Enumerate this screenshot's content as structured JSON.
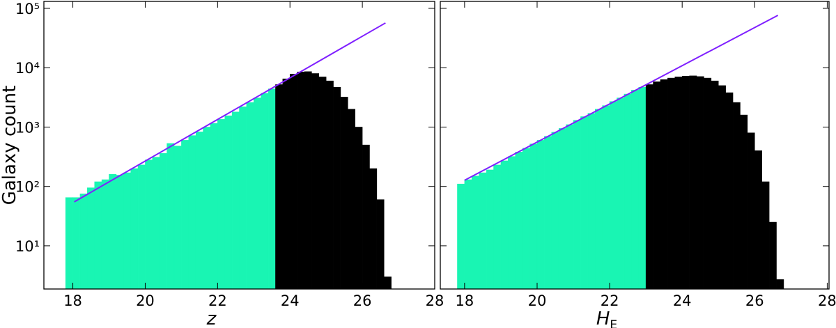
{
  "chart_data": [
    {
      "type": "histogram",
      "xlabel": "z",
      "ylabel": "Galaxy count",
      "log_y": true,
      "bins": [
        17.8,
        18,
        18.2,
        18.4,
        18.6,
        18.8,
        19,
        19.2,
        19.4,
        19.6,
        19.8,
        20,
        20.2,
        20.4,
        20.6,
        20.8,
        21,
        21.2,
        21.4,
        21.6,
        21.8,
        22,
        22.2,
        22.4,
        22.6,
        22.8,
        23,
        23.2,
        23.4,
        23.6,
        23.8,
        24,
        24.2,
        24.4,
        24.6,
        24.8,
        25,
        25.2,
        25.4,
        25.6,
        25.8,
        26,
        26.2,
        26.4,
        26.6,
        26.8
      ],
      "values": [
        65,
        65,
        75,
        95,
        120,
        130,
        160,
        155,
        170,
        200,
        230,
        280,
        310,
        360,
        530,
        480,
        600,
        720,
        830,
        1000,
        1150,
        1350,
        1550,
        1800,
        2200,
        2600,
        3100,
        3700,
        4400,
        5200,
        6500,
        7800,
        8500,
        8600,
        8000,
        7000,
        6000,
        4700,
        3200,
        2000,
        1000,
        500,
        200,
        60,
        3
      ],
      "colors": [
        "#19f5b3",
        "#19f5b3",
        "#19f5b3",
        "#19f5b3",
        "#19f5b3",
        "#19f5b3",
        "#19f5b3",
        "#19f5b3",
        "#19f5b3",
        "#19f5b3",
        "#19f5b3",
        "#19f5b3",
        "#19f5b3",
        "#19f5b3",
        "#19f5b3",
        "#19f5b3",
        "#19f5b3",
        "#19f5b3",
        "#19f5b3",
        "#19f5b3",
        "#19f5b3",
        "#19f5b3",
        "#19f5b3",
        "#19f5b3",
        "#19f5b3",
        "#19f5b3",
        "#19f5b3",
        "#19f5b3",
        "#19f5b3",
        "#000000",
        "#000000",
        "#000000",
        "#000000",
        "#000000",
        "#000000",
        "#000000",
        "#000000",
        "#000000",
        "#000000",
        "#000000",
        "#000000",
        "#000000",
        "#000000",
        "#000000",
        "#000000"
      ],
      "fit": {
        "x": [
          18.04,
          26.64
        ],
        "values": [
          55,
          56800
        ],
        "color": "#7f1fff"
      },
      "xlim": [
        17.2,
        28
      ],
      "xticks": [
        18,
        20,
        22,
        24,
        26,
        28
      ],
      "ylim": [
        1.87,
        131000
      ],
      "yticks": [
        {
          "value": 10,
          "label": "10¹"
        },
        {
          "value": 100,
          "label": "10²"
        },
        {
          "value": 1000,
          "label": "10³"
        },
        {
          "value": 10000,
          "label": "10⁴"
        },
        {
          "value": 100000,
          "label": "10⁵"
        }
      ]
    },
    {
      "type": "histogram",
      "xlabel": "H",
      "xlabel_sub": "E",
      "log_y": true,
      "bins": [
        17.8,
        18,
        18.2,
        18.4,
        18.6,
        18.8,
        19,
        19.2,
        19.4,
        19.6,
        19.8,
        20,
        20.2,
        20.4,
        20.6,
        20.8,
        21,
        21.2,
        21.4,
        21.6,
        21.8,
        22,
        22.2,
        22.4,
        22.6,
        22.8,
        23,
        23.2,
        23.4,
        23.6,
        23.8,
        24,
        24.2,
        24.4,
        24.6,
        24.8,
        25,
        25.2,
        25.4,
        25.6,
        25.8,
        26,
        26.2,
        26.4,
        26.6,
        26.8
      ],
      "values": [
        110,
        130,
        150,
        170,
        190,
        230,
        270,
        320,
        380,
        440,
        520,
        600,
        700,
        820,
        950,
        1100,
        1300,
        1500,
        1700,
        2000,
        2300,
        2700,
        3100,
        3600,
        4200,
        4700,
        5200,
        5800,
        6300,
        6700,
        7000,
        7200,
        7300,
        7100,
        6700,
        6000,
        5000,
        3800,
        2600,
        1600,
        800,
        400,
        120,
        25,
        2.7
      ],
      "colors": [
        "#19f5b3",
        "#19f5b3",
        "#19f5b3",
        "#19f5b3",
        "#19f5b3",
        "#19f5b3",
        "#19f5b3",
        "#19f5b3",
        "#19f5b3",
        "#19f5b3",
        "#19f5b3",
        "#19f5b3",
        "#19f5b3",
        "#19f5b3",
        "#19f5b3",
        "#19f5b3",
        "#19f5b3",
        "#19f5b3",
        "#19f5b3",
        "#19f5b3",
        "#19f5b3",
        "#19f5b3",
        "#19f5b3",
        "#19f5b3",
        "#19f5b3",
        "#19f5b3",
        "#000000",
        "#000000",
        "#000000",
        "#000000",
        "#000000",
        "#000000",
        "#000000",
        "#000000",
        "#000000",
        "#000000",
        "#000000",
        "#000000",
        "#000000",
        "#000000",
        "#000000",
        "#000000",
        "#000000",
        "#000000",
        "#000000"
      ],
      "fit": {
        "x": [
          18.0,
          26.64
        ],
        "values": [
          127,
          76400
        ],
        "color": "#7f1fff"
      },
      "xlim": [
        17.33,
        28.05
      ],
      "xticks": [
        18,
        20,
        22,
        24,
        26,
        28
      ],
      "ylim": [
        1.87,
        131000
      ],
      "yticks": [
        10,
        100,
        1000,
        10000,
        100000
      ]
    }
  ]
}
